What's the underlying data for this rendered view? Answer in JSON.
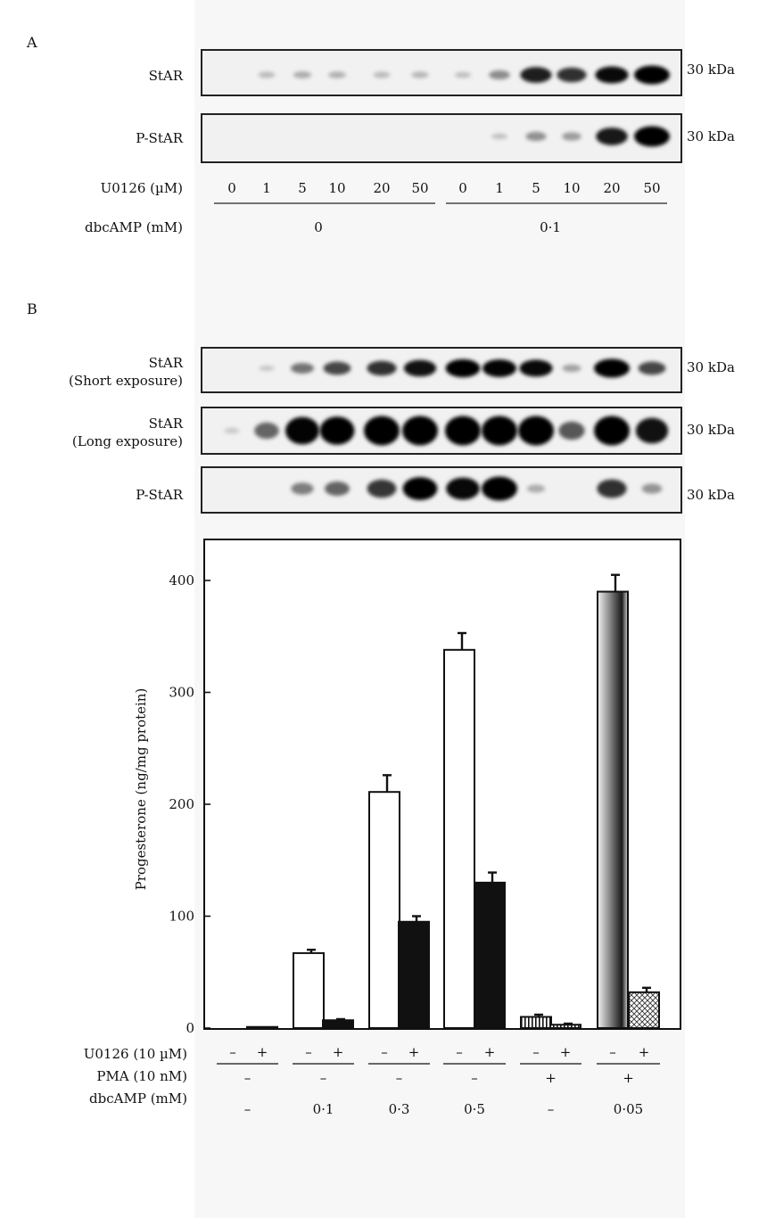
{
  "panel_a": {
    "letter": "A",
    "blots": [
      {
        "label": "StAR",
        "size": "30 kDa",
        "bands": [
          0.0,
          0.12,
          0.18,
          0.16,
          0.12,
          0.14,
          0.1,
          0.32,
          0.8,
          0.72,
          0.88,
          1.0
        ]
      },
      {
        "label": "P-StAR",
        "size": "30 kDa",
        "bands": [
          0.0,
          0.0,
          0.0,
          0.0,
          0.0,
          0.0,
          0.0,
          0.08,
          0.3,
          0.24,
          0.82,
          1.0
        ]
      }
    ],
    "u0126_label": "U0126 (µM)",
    "lanes": [
      "0",
      "1",
      "5",
      "10",
      "20",
      "50",
      "0",
      "1",
      "5",
      "10",
      "20",
      "50"
    ],
    "dbcamp_label": "dbcAMP (mM)",
    "dbcamp_groups": [
      "0",
      "0·1"
    ]
  },
  "panel_b": {
    "letter": "B",
    "blots": [
      {
        "label_lines": [
          "StAR",
          "(Short exposure)"
        ],
        "size": "30 kDa",
        "bands": [
          0.0,
          0.06,
          0.42,
          0.62,
          0.72,
          0.85,
          0.95,
          0.92,
          0.88,
          0.22,
          1.0,
          0.62
        ]
      },
      {
        "label_lines": [
          "StAR",
          "(Long exposure)"
        ],
        "size": "30 kDa",
        "bands": [
          0.05,
          0.48,
          0.92,
          0.95,
          1.0,
          1.0,
          1.0,
          1.0,
          1.0,
          0.55,
          1.0,
          0.85
        ]
      },
      {
        "label_lines": [
          "P-StAR"
        ],
        "size": "30 kDa",
        "bands": [
          0.0,
          0.0,
          0.38,
          0.5,
          0.7,
          0.95,
          0.9,
          1.0,
          0.18,
          0.0,
          0.72,
          0.28
        ]
      }
    ]
  },
  "chart_data": {
    "type": "bar",
    "title": "",
    "xlabel": "",
    "ylabel": "Progesterone (ng/mg protein)",
    "ylim": [
      0,
      400
    ],
    "yticks": [
      0,
      100,
      200,
      300,
      400
    ],
    "grid": false,
    "bars": [
      {
        "value": 0,
        "error": 0,
        "fill": "none"
      },
      {
        "value": 1,
        "error": 0,
        "fill": "black"
      },
      {
        "value": 67,
        "error": 3,
        "fill": "white"
      },
      {
        "value": 7,
        "error": 1,
        "fill": "black"
      },
      {
        "value": 211,
        "error": 15,
        "fill": "white"
      },
      {
        "value": 95,
        "error": 5,
        "fill": "black"
      },
      {
        "value": 338,
        "error": 15,
        "fill": "white"
      },
      {
        "value": 130,
        "error": 9,
        "fill": "black"
      },
      {
        "value": 10,
        "error": 2,
        "fill": "striped"
      },
      {
        "value": 3,
        "error": 1,
        "fill": "striped"
      },
      {
        "value": 390,
        "error": 15,
        "fill": "gradient"
      },
      {
        "value": 32,
        "error": 4,
        "fill": "crosshatch"
      }
    ],
    "factors": [
      {
        "label": "U0126 (10 µM)",
        "values": [
          "–",
          "+",
          "–",
          "+",
          "–",
          "+",
          "–",
          "+",
          "–",
          "+",
          "–",
          "+"
        ]
      },
      {
        "label": "PMA (10 nM)",
        "values": [
          "–",
          "–",
          "–",
          "–",
          "+",
          "+"
        ]
      },
      {
        "label": "dbcAMP (mM)",
        "values": [
          "–",
          "0·1",
          "0·3",
          "0·5",
          "–",
          "0·05"
        ]
      }
    ]
  }
}
